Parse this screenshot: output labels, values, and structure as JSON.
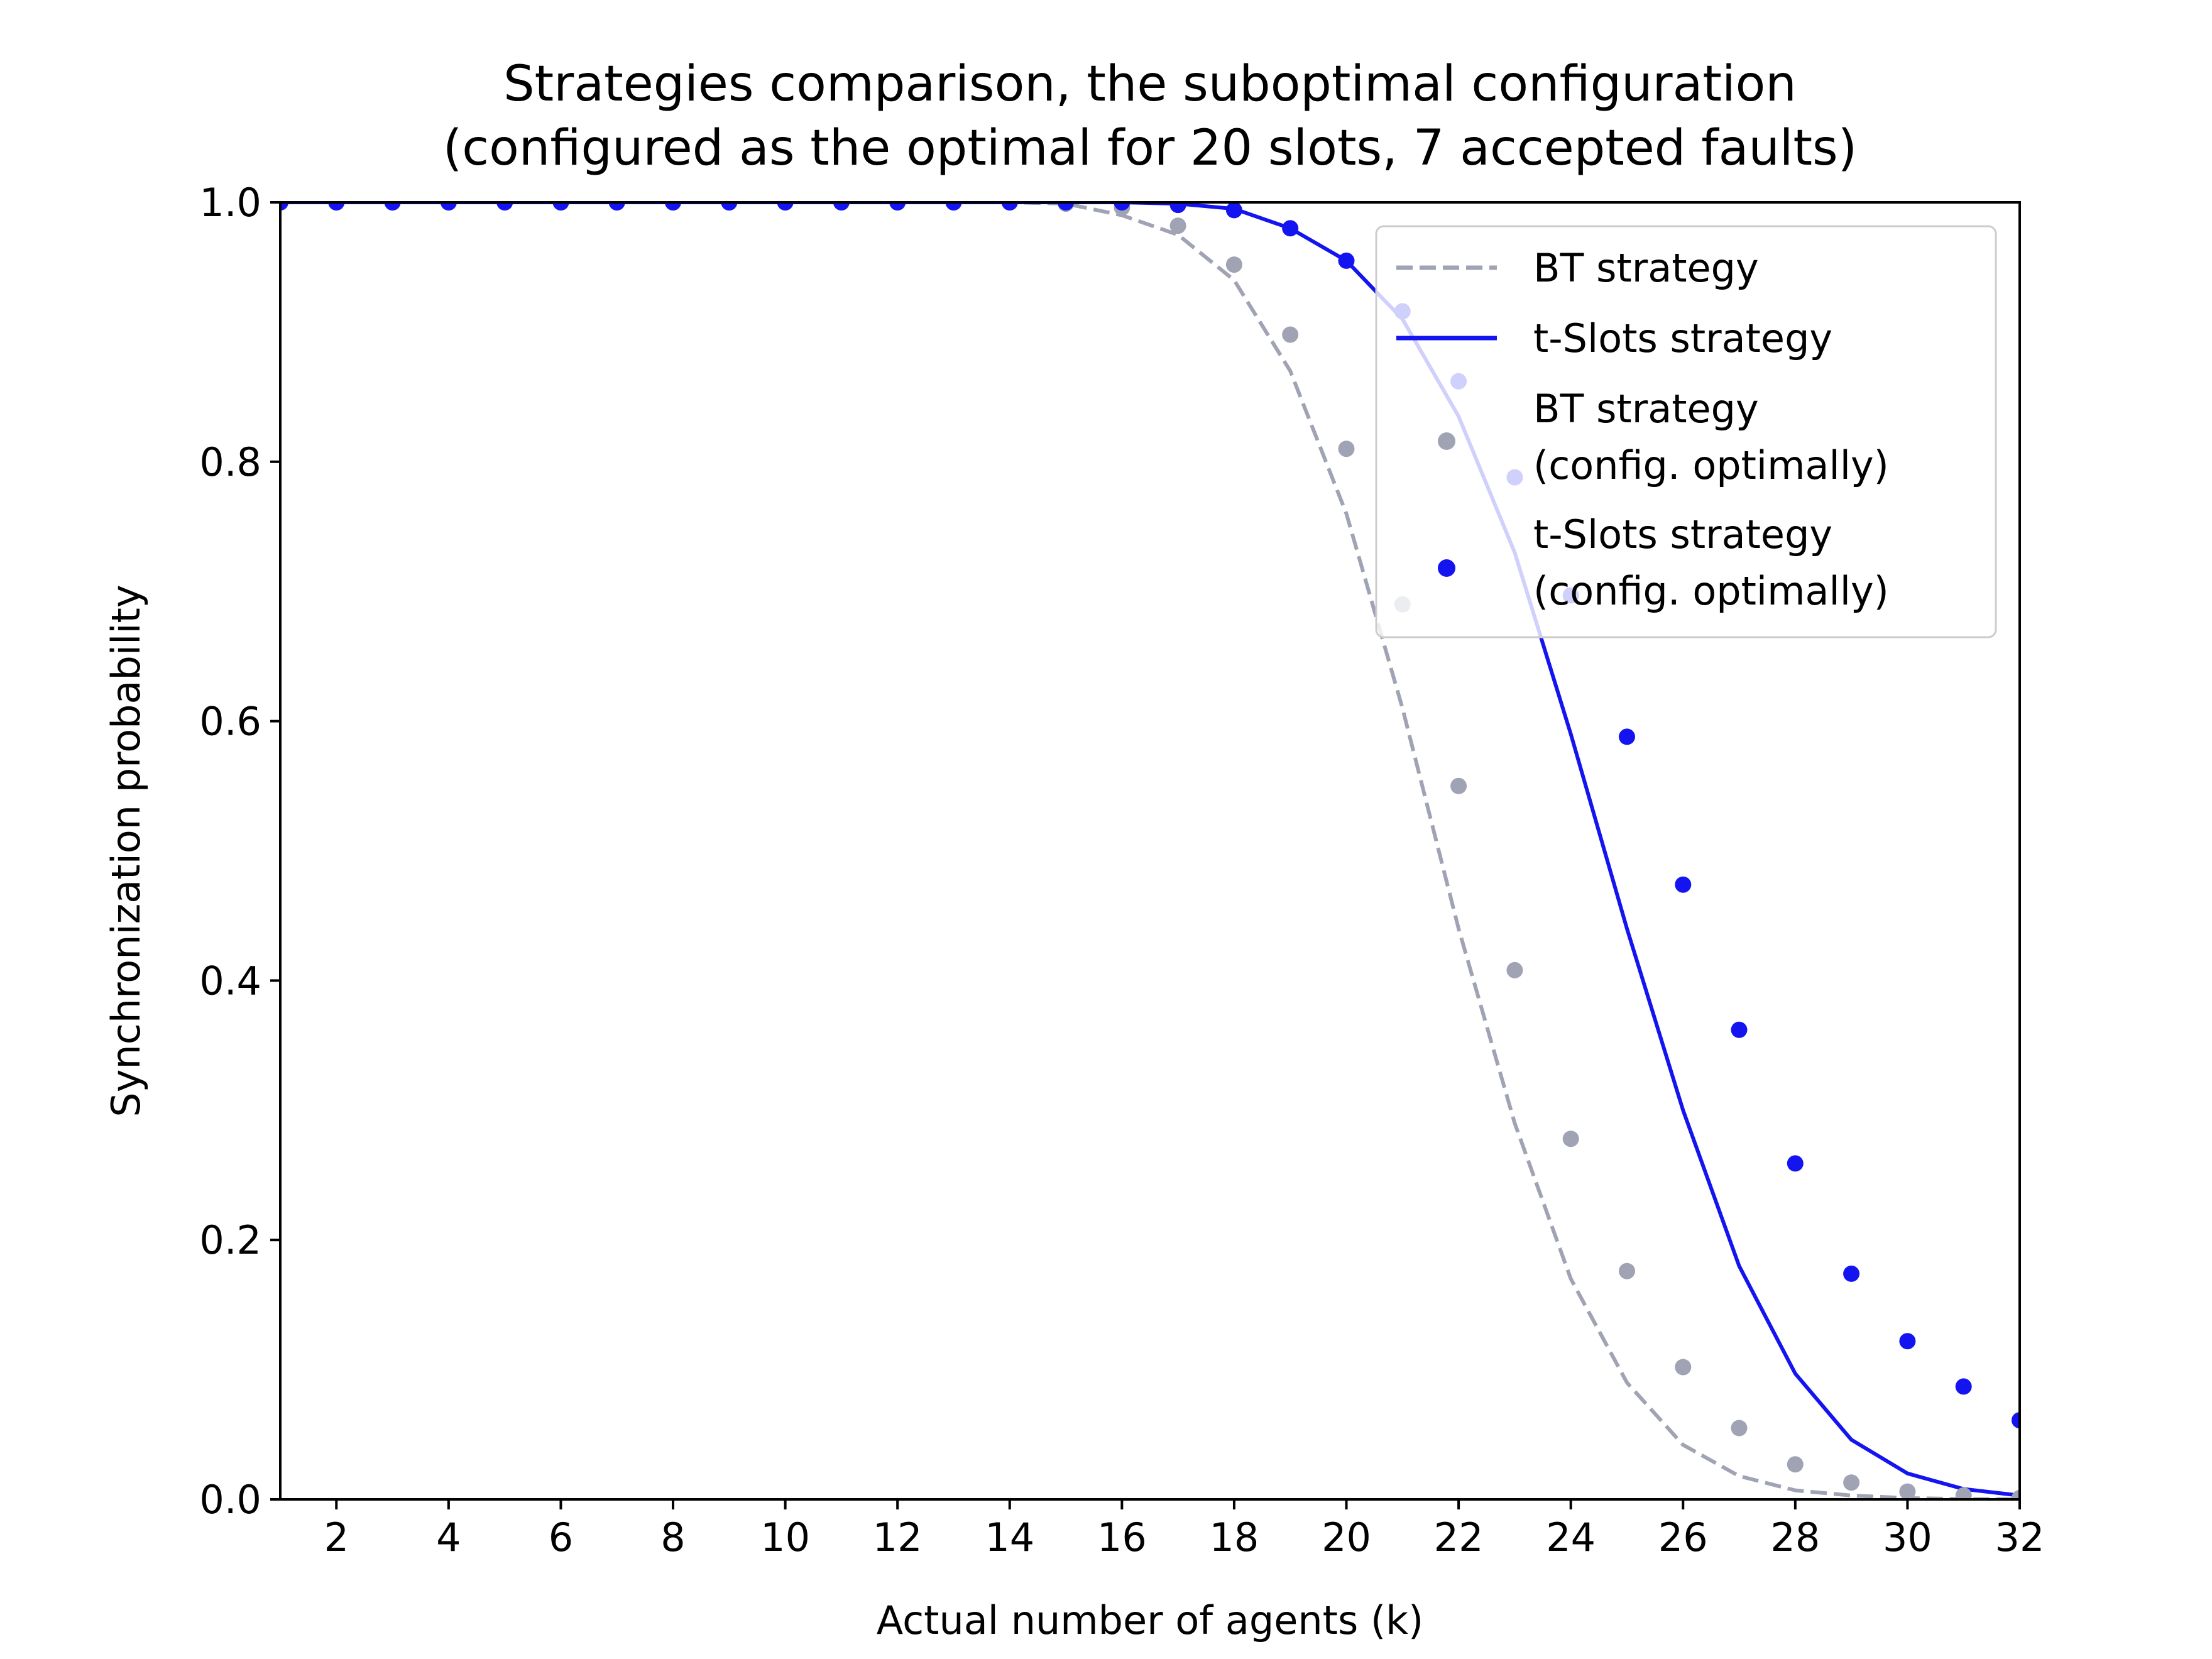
{
  "chart_data": {
    "type": "line",
    "title_lines": [
      "Strategies comparison, the suboptimal configuration",
      "(configured as the optimal for 20 slots, 7 accepted faults)"
    ],
    "xlabel": "Actual number of agents (k)",
    "ylabel": "Synchronization probability",
    "xlim": [
      1,
      32
    ],
    "ylim": [
      0,
      1
    ],
    "xticks": [
      2,
      4,
      6,
      8,
      10,
      12,
      14,
      16,
      18,
      20,
      22,
      24,
      26,
      28,
      30,
      32
    ],
    "yticks": [
      0.0,
      0.2,
      0.4,
      0.6,
      0.8,
      1.0
    ],
    "ytick_labels": [
      "0.0",
      "0.2",
      "0.4",
      "0.6",
      "0.8",
      "1.0"
    ],
    "grid": false,
    "legend_position": "upper right",
    "x": [
      1,
      2,
      3,
      4,
      5,
      6,
      7,
      8,
      9,
      10,
      11,
      12,
      13,
      14,
      15,
      16,
      17,
      18,
      19,
      20,
      21,
      22,
      23,
      24,
      25,
      26,
      27,
      28,
      29,
      30,
      31,
      32
    ],
    "series": [
      {
        "name": "BT strategy",
        "style": "dashed-line",
        "color": "#a0a3b4",
        "values": [
          1,
          1,
          1,
          1,
          1,
          1,
          1,
          1,
          1,
          1,
          1,
          1,
          1,
          1,
          0.999,
          0.99,
          0.975,
          0.94,
          0.87,
          0.76,
          0.61,
          0.44,
          0.29,
          0.17,
          0.09,
          0.042,
          0.018,
          0.007,
          0.003,
          0.001,
          0.0003,
          0.0001
        ]
      },
      {
        "name": "t-Slots strategy",
        "style": "solid-line",
        "color": "#1414f0",
        "values": [
          1,
          1,
          1,
          1,
          1,
          1,
          1,
          1,
          1,
          1,
          1,
          1,
          1,
          1,
          1,
          1,
          0.999,
          0.995,
          0.98,
          0.955,
          0.91,
          0.835,
          0.73,
          0.59,
          0.44,
          0.3,
          0.18,
          0.097,
          0.046,
          0.02,
          0.008,
          0.003
        ]
      },
      {
        "name": "BT strategy\n(config. optimally)",
        "legend_lines": [
          "BT strategy",
          "(config. optimally)"
        ],
        "style": "markers",
        "color": "#a0a3b4",
        "values": [
          1,
          1,
          1,
          1,
          1,
          1,
          1,
          1,
          1,
          1,
          1,
          1,
          1,
          1,
          0.999,
          0.996,
          0.982,
          0.952,
          0.898,
          0.81,
          0.69,
          0.55,
          0.408,
          0.278,
          0.176,
          0.102,
          0.055,
          0.027,
          0.013,
          0.006,
          0.003,
          0.001
        ]
      },
      {
        "name": "t-Slots strategy\n(config. optimally)",
        "legend_lines": [
          "t-Slots strategy",
          "(config. optimally)"
        ],
        "style": "markers",
        "color": "#1414f0",
        "values": [
          1,
          1,
          1,
          1,
          1,
          1,
          1,
          1,
          1,
          1,
          1,
          1,
          1,
          1,
          1,
          1,
          0.998,
          0.994,
          0.98,
          0.955,
          0.916,
          0.862,
          0.788,
          0.697,
          0.588,
          0.474,
          0.362,
          0.259,
          0.174,
          0.122,
          0.087,
          0.061
        ]
      }
    ]
  }
}
